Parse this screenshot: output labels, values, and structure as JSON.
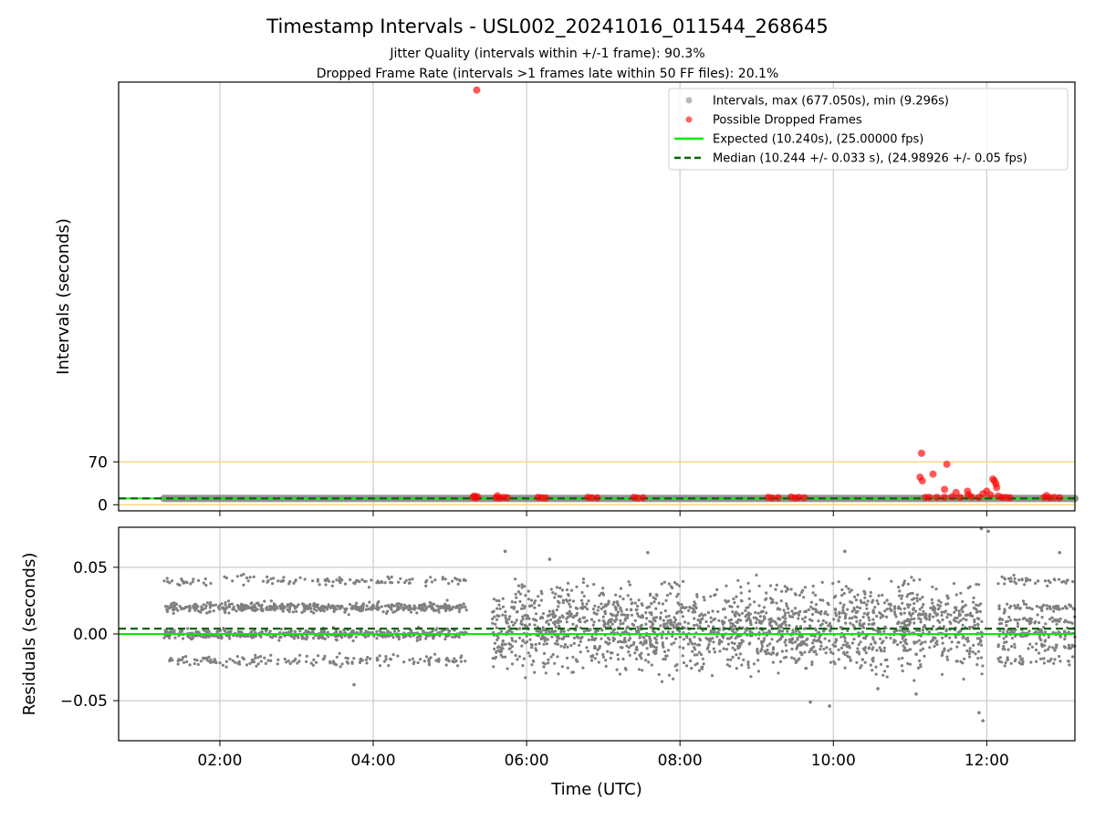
{
  "title": "Timestamp Intervals - USL002_20241016_011544_268645",
  "subtitle_lines": [
    "Jitter Quality (intervals within +/-1 frame): 90.3%",
    "Dropped Frame Rate (intervals >1 frames late within 50 FF files): 20.1%"
  ],
  "colors": {
    "intervals": "#808080",
    "dropped": "#ff0000",
    "expected": "#00ee00",
    "median": "#006400",
    "threshold": "#ffd27f",
    "grid": "#cccccc"
  },
  "chart_data": [
    {
      "type": "scatter",
      "panel": "intervals",
      "ylabel": "Intervals (seconds)",
      "x_unit": "hour (UTC)",
      "xlim": [
        0.68,
        13.15
      ],
      "ylim": [
        -10,
        690
      ],
      "xticks": [
        2,
        4,
        6,
        8,
        10,
        12
      ],
      "xtick_labels": [
        "02:00",
        "04:00",
        "06:00",
        "08:00",
        "10:00",
        "12:00"
      ],
      "yticks": [
        0,
        70
      ],
      "ytick_labels": [
        "0",
        "70"
      ],
      "grid": "vertical",
      "legend_position": "top-right",
      "legend": [
        "Intervals, max (677.050s), min (9.296s)",
        "Possible Dropped Frames",
        "Expected (10.240s), (25.00000 fps)",
        "Median (10.244 +/- 0.033 s), (24.98926 +/- 0.05 fps)"
      ],
      "intervals_range": [
        1.27,
        13.15
      ],
      "intervals_typical": 10.24,
      "expected": 10.24,
      "median": 10.244,
      "threshold_lines": [
        0,
        70
      ],
      "dropped_frames": [
        [
          5.3,
          12.5
        ],
        [
          5.32,
          14.0
        ],
        [
          5.34,
          11.2
        ],
        [
          5.36,
          13.0
        ],
        [
          5.35,
          677.05
        ],
        [
          5.6,
          11.5
        ],
        [
          5.62,
          14.5
        ],
        [
          5.65,
          11.0
        ],
        [
          5.7,
          12.0
        ],
        [
          5.75,
          11.5
        ],
        [
          6.15,
          12.0
        ],
        [
          6.2,
          11.5
        ],
        [
          6.25,
          11.0
        ],
        [
          6.8,
          12.0
        ],
        [
          6.85,
          11.5
        ],
        [
          6.92,
          11.2
        ],
        [
          7.4,
          12.0
        ],
        [
          7.45,
          11.0
        ],
        [
          7.52,
          11.5
        ],
        [
          9.15,
          12.0
        ],
        [
          9.2,
          11.0
        ],
        [
          9.28,
          11.5
        ],
        [
          9.45,
          12.5
        ],
        [
          9.5,
          11.0
        ],
        [
          9.55,
          12.0
        ],
        [
          9.62,
          11.5
        ],
        [
          11.15,
          84
        ],
        [
          11.13,
          45
        ],
        [
          11.16,
          39
        ],
        [
          11.3,
          50
        ],
        [
          11.48,
          66
        ],
        [
          11.2,
          12
        ],
        [
          11.25,
          12
        ],
        [
          11.35,
          12
        ],
        [
          11.45,
          12
        ],
        [
          11.45,
          25
        ],
        [
          11.55,
          13
        ],
        [
          11.6,
          20
        ],
        [
          11.65,
          12
        ],
        [
          11.75,
          22
        ],
        [
          11.76,
          16
        ],
        [
          11.8,
          13
        ],
        [
          11.9,
          12
        ],
        [
          11.95,
          18
        ],
        [
          12.0,
          22
        ],
        [
          12.05,
          16
        ],
        [
          12.08,
          42
        ],
        [
          12.1,
          39
        ],
        [
          12.12,
          34
        ],
        [
          12.13,
          28
        ],
        [
          12.15,
          14
        ],
        [
          12.2,
          12
        ],
        [
          12.25,
          12
        ],
        [
          12.3,
          11.5
        ],
        [
          12.75,
          12
        ],
        [
          12.78,
          15
        ],
        [
          12.82,
          11.5
        ],
        [
          12.88,
          12
        ],
        [
          12.95,
          11.5
        ]
      ]
    },
    {
      "type": "scatter",
      "panel": "residuals",
      "xlabel": "Time (UTC)",
      "ylabel": "Residuals (seconds)",
      "x_unit": "hour (UTC)",
      "xlim": [
        0.68,
        13.15
      ],
      "ylim": [
        -0.08,
        0.08
      ],
      "xticks": [
        2,
        4,
        6,
        8,
        10,
        12
      ],
      "xtick_labels": [
        "02:00",
        "04:00",
        "06:00",
        "08:00",
        "10:00",
        "12:00"
      ],
      "yticks": [
        -0.05,
        0.0,
        0.05
      ],
      "ytick_labels": [
        "−0.05",
        "0.00",
        "0.05"
      ],
      "grid": "both",
      "expected": 0.0,
      "median": 0.004,
      "segments": [
        {
          "x_range": [
            1.27,
            5.22
          ],
          "pattern": "quantized",
          "levels": [
            -0.02,
            0.0,
            0.02,
            0.04
          ],
          "weights": [
            0.14,
            0.38,
            0.38,
            0.1
          ]
        },
        {
          "x_range": [
            5.55,
            11.95
          ],
          "pattern": "continuous",
          "center": 0.005,
          "spread": 0.045
        },
        {
          "x_range": [
            12.15,
            13.15
          ],
          "pattern": "quantized",
          "levels": [
            -0.02,
            -0.01,
            0.0,
            0.01,
            0.02,
            0.04
          ],
          "weights": [
            0.12,
            0.15,
            0.25,
            0.2,
            0.18,
            0.1
          ]
        }
      ],
      "outliers": [
        [
          3.75,
          -0.038
        ],
        [
          9.7,
          -0.051
        ],
        [
          9.95,
          -0.054
        ],
        [
          11.9,
          -0.059
        ],
        [
          11.95,
          -0.065
        ],
        [
          11.93,
          0.079
        ],
        [
          12.02,
          0.077
        ],
        [
          10.15,
          0.062
        ],
        [
          5.72,
          0.062
        ],
        [
          12.95,
          0.061
        ],
        [
          7.58,
          0.061
        ],
        [
          10.58,
          -0.041
        ],
        [
          6.3,
          0.056
        ],
        [
          11.08,
          -0.045
        ]
      ]
    }
  ]
}
